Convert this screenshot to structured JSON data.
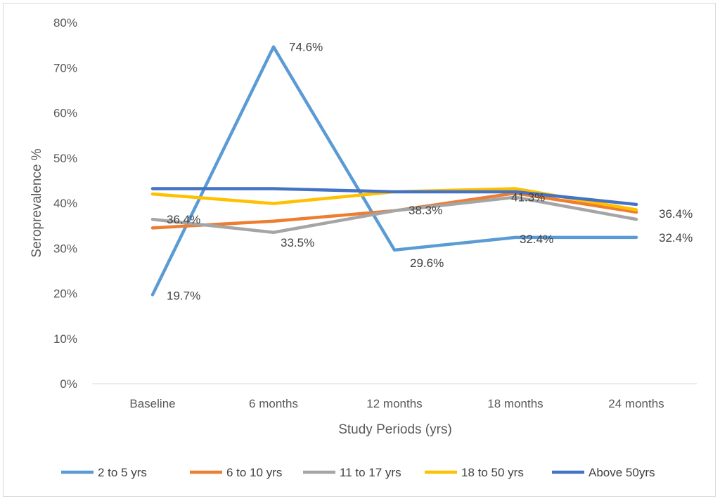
{
  "chart_data": {
    "type": "line",
    "title": "",
    "xlabel": "Study Periods (yrs)",
    "ylabel": "Seroprevalence %",
    "ylim": [
      0,
      80
    ],
    "yticks": [
      "0%",
      "10%",
      "20%",
      "30%",
      "40%",
      "50%",
      "60%",
      "70%",
      "80%"
    ],
    "categories": [
      "Baseline",
      "6 months",
      "12 months",
      "18 months",
      "24 months"
    ],
    "grid": false,
    "legend_position": "bottom",
    "series": [
      {
        "name": "2 to 5 yrs",
        "color": "#5b9bd5",
        "values": [
          19.7,
          74.6,
          29.6,
          32.4,
          32.4
        ]
      },
      {
        "name": "6 to 10 yrs",
        "color": "#ed7d31",
        "values": [
          34.5,
          36.0,
          38.3,
          42.2,
          38.0
        ]
      },
      {
        "name": "11 to 17 yrs",
        "color": "#a5a5a5",
        "values": [
          36.4,
          33.5,
          38.3,
          41.3,
          36.4
        ]
      },
      {
        "name": "18 to 50 yrs",
        "color": "#ffc000",
        "values": [
          42.0,
          39.9,
          42.5,
          43.2,
          38.5
        ]
      },
      {
        "name": "Above 50yrs",
        "color": "#4472c4",
        "values": [
          43.2,
          43.2,
          42.5,
          42.5,
          39.7
        ]
      }
    ],
    "data_labels": [
      {
        "text": "19.7%",
        "series": 0,
        "index": 0
      },
      {
        "text": "74.6%",
        "series": 0,
        "index": 1
      },
      {
        "text": "29.6%",
        "series": 0,
        "index": 2
      },
      {
        "text": "32.4%",
        "series": 0,
        "index": 3
      },
      {
        "text": "32.4%",
        "series": 0,
        "index": 4
      },
      {
        "text": "36.4%",
        "series": 2,
        "index": 0
      },
      {
        "text": "33.5%",
        "series": 2,
        "index": 1
      },
      {
        "text": "38.3%",
        "series": 2,
        "index": 2
      },
      {
        "text": "41.3%",
        "series": 2,
        "index": 3
      },
      {
        "text": "36.4%",
        "series": 2,
        "index": 4
      }
    ]
  }
}
